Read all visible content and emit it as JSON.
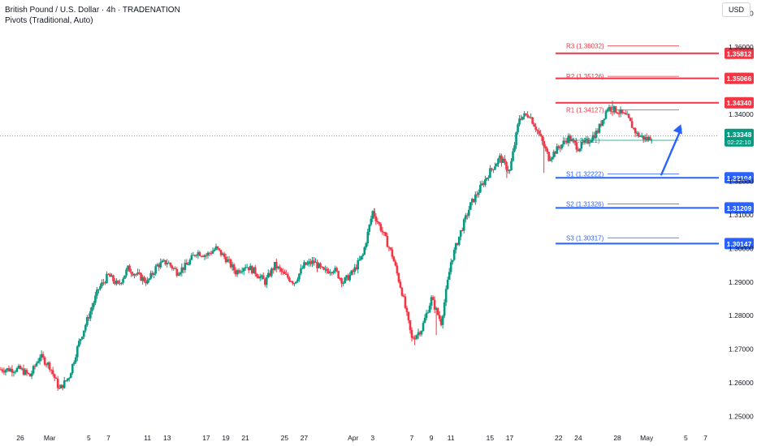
{
  "header": {
    "title": "British Pound / U.S. Dollar · 4h · TRADENATION",
    "subtitle": "Pivots (Traditional, Auto)"
  },
  "currency": "USD",
  "colors": {
    "up": "#089981",
    "down": "#f23645",
    "resistance": "#f23645",
    "support": "#2962ff",
    "price_tag": "#089981",
    "arrow": "#2962ff",
    "grid_text": "#131722"
  },
  "chart_data": {
    "type": "candlestick",
    "ylim": [
      1.246,
      1.374
    ],
    "y_ticks": [
      {
        "value": 1.37,
        "label": "1.37000"
      },
      {
        "value": 1.36,
        "label": "1.36000"
      },
      {
        "value": 1.34,
        "label": "1.34000"
      },
      {
        "value": 1.32,
        "label": "1.32000"
      },
      {
        "value": 1.31,
        "label": "1.31000"
      },
      {
        "value": 1.3,
        "label": "1.30000"
      },
      {
        "value": 1.29,
        "label": "1.29000"
      },
      {
        "value": 1.28,
        "label": "1.28000"
      },
      {
        "value": 1.27,
        "label": "1.27000"
      },
      {
        "value": 1.26,
        "label": "1.26000"
      },
      {
        "value": 1.25,
        "label": "1.25000"
      }
    ],
    "x_ticks": [
      {
        "label": "26",
        "day": 0
      },
      {
        "label": "Mar",
        "day": 3
      },
      {
        "label": "5",
        "day": 7
      },
      {
        "label": "7",
        "day": 9
      },
      {
        "label": "11",
        "day": 13
      },
      {
        "label": "13",
        "day": 15
      },
      {
        "label": "17",
        "day": 19
      },
      {
        "label": "19",
        "day": 21
      },
      {
        "label": "21",
        "day": 23
      },
      {
        "label": "25",
        "day": 27
      },
      {
        "label": "27",
        "day": 29
      },
      {
        "label": "Apr",
        "day": 34
      },
      {
        "label": "3",
        "day": 36
      },
      {
        "label": "7",
        "day": 40
      },
      {
        "label": "9",
        "day": 42
      },
      {
        "label": "11",
        "day": 44
      },
      {
        "label": "15",
        "day": 48
      },
      {
        "label": "17",
        "day": 50
      },
      {
        "label": "22",
        "day": 55
      },
      {
        "label": "24",
        "day": 57
      },
      {
        "label": "28",
        "day": 61
      },
      {
        "label": "May",
        "day": 64
      },
      {
        "label": "5",
        "day": 68
      },
      {
        "label": "7",
        "day": 70
      }
    ],
    "close_path": [
      [
        0,
        1.264
      ],
      [
        1,
        1.262
      ],
      [
        2,
        1.268
      ],
      [
        3,
        1.265
      ],
      [
        4,
        1.258
      ],
      [
        5,
        1.262
      ],
      [
        6,
        1.272
      ],
      [
        7,
        1.28
      ],
      [
        8,
        1.288
      ],
      [
        9,
        1.292
      ],
      [
        10,
        1.289
      ],
      [
        11,
        1.294
      ],
      [
        12,
        1.292
      ],
      [
        13,
        1.29
      ],
      [
        14,
        1.295
      ],
      [
        15,
        1.296
      ],
      [
        16,
        1.293
      ],
      [
        17,
        1.295
      ],
      [
        18,
        1.299
      ],
      [
        19,
        1.298
      ],
      [
        20,
        1.3
      ],
      [
        21,
        1.297
      ],
      [
        22,
        1.293
      ],
      [
        23,
        1.295
      ],
      [
        24,
        1.293
      ],
      [
        25,
        1.29
      ],
      [
        26,
        1.295
      ],
      [
        27,
        1.292
      ],
      [
        28,
        1.29
      ],
      [
        29,
        1.295
      ],
      [
        30,
        1.296
      ],
      [
        31,
        1.293
      ],
      [
        32,
        1.294
      ],
      [
        33,
        1.29
      ],
      [
        34,
        1.293
      ],
      [
        35,
        1.298
      ],
      [
        36,
        1.311
      ],
      [
        37,
        1.305
      ],
      [
        38,
        1.298
      ],
      [
        39,
        1.287
      ],
      [
        40,
        1.273
      ],
      [
        41,
        1.276
      ],
      [
        42,
        1.285
      ],
      [
        43,
        1.278
      ],
      [
        44,
        1.296
      ],
      [
        45,
        1.305
      ],
      [
        46,
        1.313
      ],
      [
        47,
        1.318
      ],
      [
        48,
        1.323
      ],
      [
        49,
        1.327
      ],
      [
        50,
        1.323
      ],
      [
        51,
        1.339
      ],
      [
        52,
        1.34
      ],
      [
        53,
        1.334
      ],
      [
        54,
        1.327
      ],
      [
        55,
        1.33
      ],
      [
        56,
        1.333
      ],
      [
        57,
        1.33
      ],
      [
        58,
        1.332
      ],
      [
        59,
        1.335
      ],
      [
        60,
        1.342
      ],
      [
        61,
        1.341
      ],
      [
        62,
        1.339
      ],
      [
        63,
        1.334
      ],
      [
        64,
        1.3325
      ],
      [
        64.6,
        1.3335
      ]
    ],
    "spikes": [
      {
        "day": 36.2,
        "value": 1.312
      },
      {
        "day": 40.3,
        "value": 1.2712
      },
      {
        "day": 42.5,
        "value": 1.2742
      },
      {
        "day": 49.7,
        "value": 1.321
      },
      {
        "day": 53.5,
        "value": 1.3225
      },
      {
        "day": 60.5,
        "value": 1.344
      }
    ],
    "pivots": [
      {
        "label": "R3 (1.36032)",
        "value": 1.36032,
        "kind": "resistance"
      },
      {
        "label": "R2 (1.35126)",
        "value": 1.35126,
        "kind": "resistance"
      },
      {
        "label": "R1 (1.34127)",
        "value": 1.34127,
        "kind": "resistance"
      },
      {
        "label": "P (1.33221)",
        "value": 1.33221,
        "kind": "pivot"
      },
      {
        "label": "S1 (1.32222)",
        "value": 1.32222,
        "kind": "support"
      },
      {
        "label": "S2 (1.31326)",
        "value": 1.31326,
        "kind": "support"
      },
      {
        "label": "S3 (1.30317)",
        "value": 1.30317,
        "kind": "support"
      }
    ],
    "levels": [
      {
        "value": 1.35812,
        "label": "1.35812",
        "kind": "resistance"
      },
      {
        "value": 1.35066,
        "label": "1.35066",
        "kind": "resistance"
      },
      {
        "value": 1.3434,
        "label": "1.34340",
        "kind": "resistance"
      },
      {
        "value": 1.32104,
        "label": "1.32104",
        "kind": "support"
      },
      {
        "value": 1.31209,
        "label": "1.31209",
        "kind": "support"
      },
      {
        "value": 1.30147,
        "label": "1.30147",
        "kind": "support"
      }
    ],
    "current": {
      "value": 1.33348,
      "label": "1.33348",
      "countdown": "02:22:10"
    },
    "arrow": {
      "from": [
        65.5,
        1.322
      ],
      "to": [
        67.5,
        1.337
      ]
    }
  }
}
